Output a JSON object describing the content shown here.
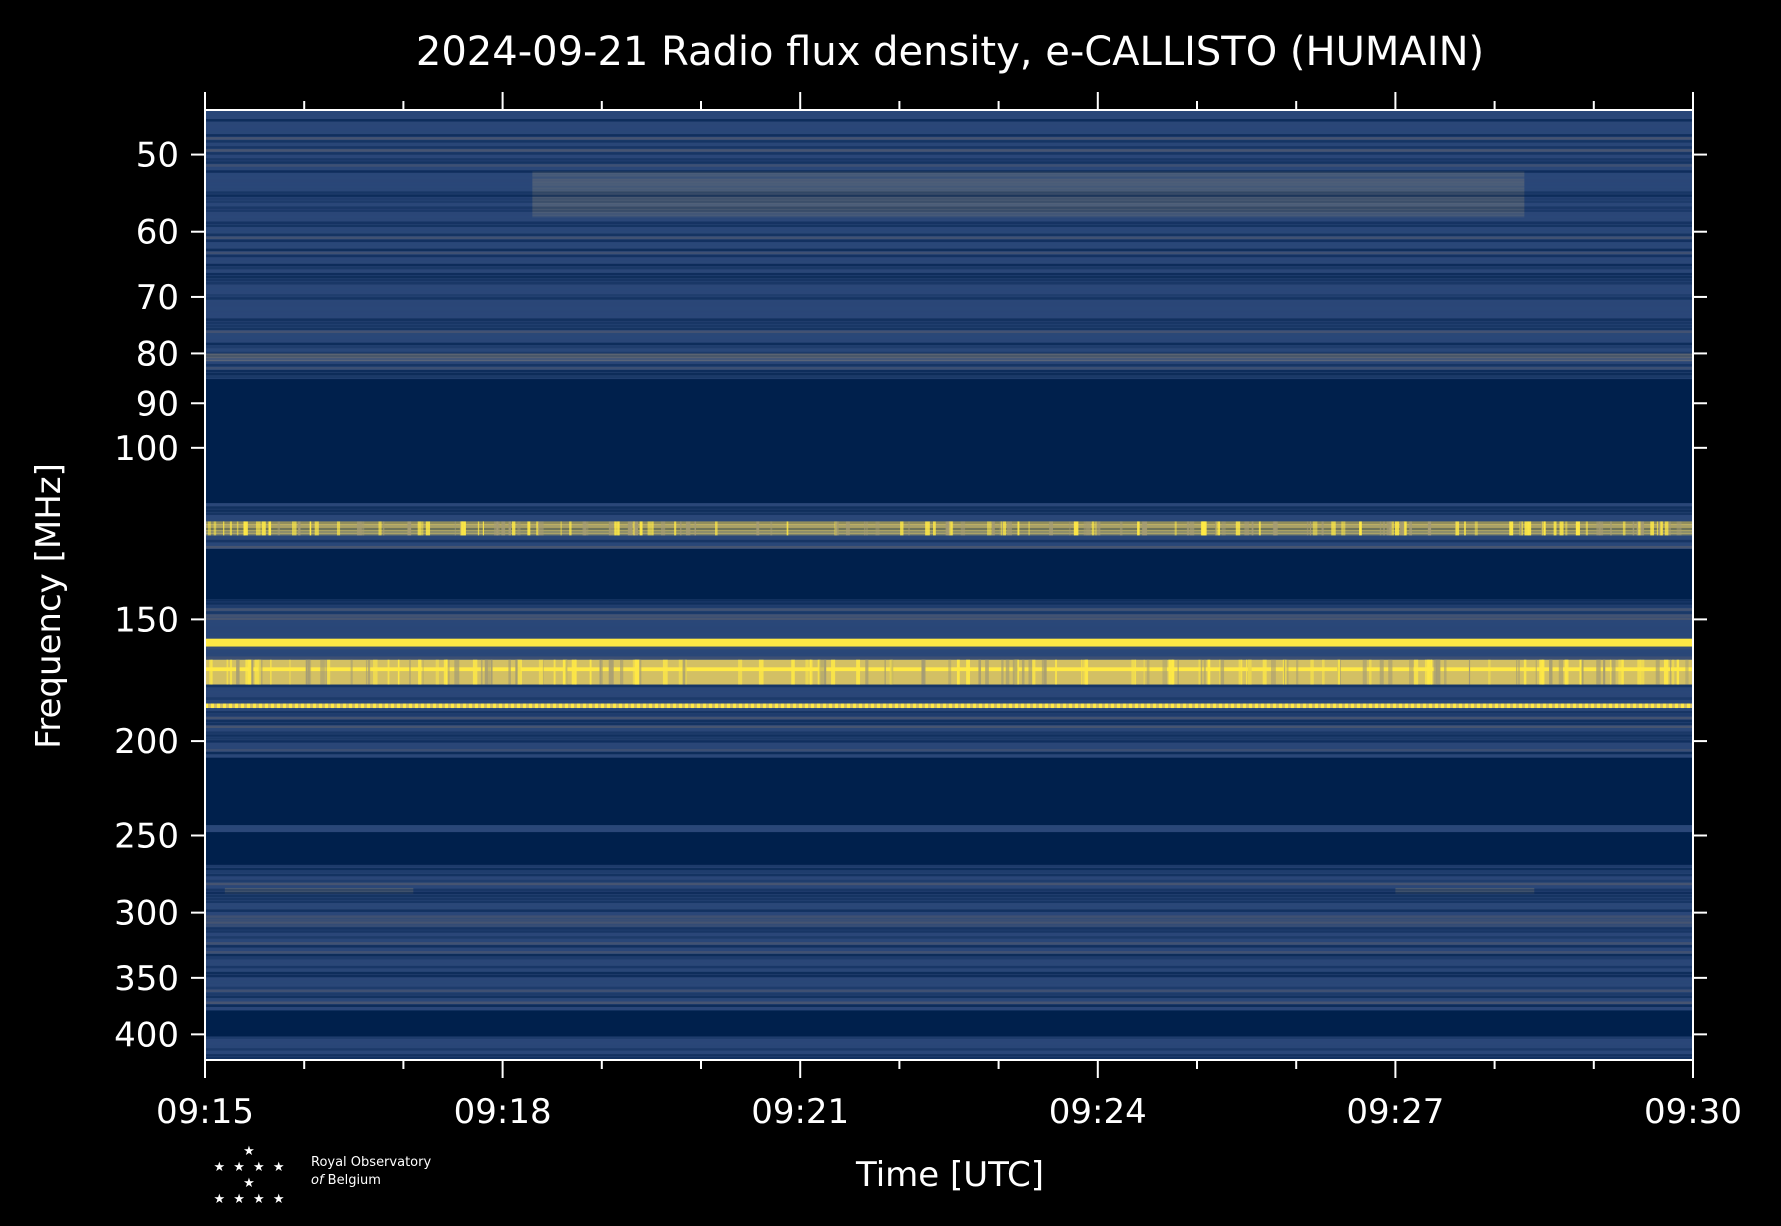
{
  "chart_data": {
    "type": "heatmap",
    "title": "2024-09-21 Radio flux density, e-CALLISTO (HUMAIN)",
    "xlabel": "Time [UTC]",
    "ylabel": "Frequency [MHz]",
    "x_ticks": [
      "09:15",
      "09:18",
      "09:21",
      "09:24",
      "09:27",
      "09:30"
    ],
    "x_range_minutes": [
      0,
      15
    ],
    "y_scale": "log",
    "y_range": [
      45,
      425
    ],
    "y_ticks": [
      50,
      60,
      70,
      80,
      90,
      100,
      150,
      200,
      250,
      300,
      350,
      400
    ],
    "colormap": [
      "#00204c",
      "#2a4778",
      "#575c6d",
      "#7c7b78",
      "#a59c74",
      "#d3c064",
      "#ffe945"
    ],
    "bands": [
      {
        "f_low": 45,
        "f_high": 62,
        "level": "mid",
        "texture": "noisy"
      },
      {
        "f_low": 52,
        "f_high": 58,
        "level": "grey",
        "texture": "patch",
        "t_start": 3.3,
        "t_end": 13.3
      },
      {
        "f_low": 62,
        "f_high": 85,
        "level": "mid",
        "texture": "noisy"
      },
      {
        "f_low": 80,
        "f_high": 81.5,
        "level": "grey",
        "texture": "line"
      },
      {
        "f_low": 85,
        "f_high": 114,
        "level": "low",
        "texture": "flat"
      },
      {
        "f_low": 114,
        "f_high": 127,
        "level": "mid",
        "texture": "noisy"
      },
      {
        "f_low": 119,
        "f_high": 123,
        "level": "high",
        "texture": "spiky"
      },
      {
        "f_low": 127,
        "f_high": 143,
        "level": "low",
        "texture": "flat"
      },
      {
        "f_low": 143,
        "f_high": 157,
        "level": "mid",
        "texture": "noisy"
      },
      {
        "f_low": 157,
        "f_high": 160,
        "level": "max",
        "texture": "solid"
      },
      {
        "f_low": 160,
        "f_high": 165,
        "level": "mid",
        "texture": "noisy"
      },
      {
        "f_low": 165,
        "f_high": 175,
        "level": "high",
        "texture": "spiky"
      },
      {
        "f_low": 168,
        "f_high": 169.5,
        "level": "max",
        "texture": "solid"
      },
      {
        "f_low": 175,
        "f_high": 183,
        "level": "mid",
        "texture": "noisy"
      },
      {
        "f_low": 183,
        "f_high": 185,
        "level": "high",
        "texture": "dotted"
      },
      {
        "f_low": 185,
        "f_high": 208,
        "level": "mid",
        "texture": "noisy"
      },
      {
        "f_low": 208,
        "f_high": 244,
        "level": "low",
        "texture": "flat"
      },
      {
        "f_low": 244,
        "f_high": 248,
        "level": "mid",
        "texture": "noisy"
      },
      {
        "f_low": 248,
        "f_high": 268,
        "level": "low",
        "texture": "flat"
      },
      {
        "f_low": 268,
        "f_high": 378,
        "level": "mid",
        "texture": "noisy"
      },
      {
        "f_low": 283,
        "f_high": 287,
        "level": "grey",
        "texture": "patch",
        "t_start": 0.2,
        "t_end": 2.1
      },
      {
        "f_low": 283,
        "f_high": 287,
        "level": "grey",
        "texture": "patch",
        "t_start": 12.0,
        "t_end": 13.4
      },
      {
        "f_low": 378,
        "f_high": 402,
        "level": "low",
        "texture": "flat"
      },
      {
        "f_low": 402,
        "f_high": 425,
        "level": "mid",
        "texture": "noisy"
      }
    ],
    "grid": false,
    "legend": "none"
  },
  "logo": {
    "stars": [
      "★",
      "★ ★ ★ ★ ★",
      "★ ★ ★ ★"
    ],
    "line1": "Royal Observatory",
    "line2_prefix": "of",
    "line2_rest": " Belgium"
  }
}
